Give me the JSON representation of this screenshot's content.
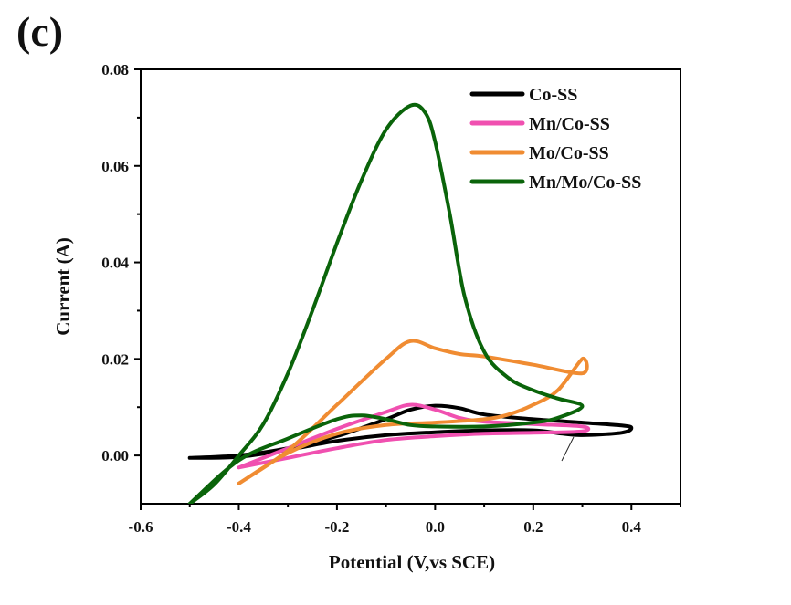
{
  "panel_label": "(c)",
  "chart_data": {
    "type": "line",
    "title": "",
    "xlabel": "Potential (V,vs SCE)",
    "ylabel": "Current (A)",
    "xlim": [
      -0.6,
      0.5
    ],
    "ylim": [
      -0.01,
      0.08
    ],
    "xticks": [
      -0.6,
      -0.4,
      -0.2,
      0.0,
      0.2,
      0.4
    ],
    "xtick_labels": [
      "-0.6",
      "-0.4",
      "-0.2",
      "0.0",
      "0.2",
      "0.4"
    ],
    "xminor": [
      -0.5,
      -0.3,
      -0.1,
      0.1,
      0.3,
      0.5
    ],
    "yticks": [
      0.0,
      0.02,
      0.04,
      0.06,
      0.08
    ],
    "ytick_labels": [
      "0.00",
      "0.02",
      "0.04",
      "0.06",
      "0.08"
    ],
    "yminor": [
      0.01,
      0.03,
      0.05,
      0.07
    ],
    "grid": false,
    "legend_position": "top-right",
    "series": [
      {
        "name": "Co-SS",
        "color": "#000000",
        "points": [
          [
            -0.5,
            -0.0005
          ],
          [
            -0.4,
            0.0
          ],
          [
            -0.3,
            0.0015
          ],
          [
            -0.2,
            0.004
          ],
          [
            -0.1,
            0.0075
          ],
          [
            -0.05,
            0.0095
          ],
          [
            0.0,
            0.0103
          ],
          [
            0.05,
            0.0098
          ],
          [
            0.1,
            0.0085
          ],
          [
            0.2,
            0.0075
          ],
          [
            0.3,
            0.0068
          ],
          [
            0.38,
            0.0062
          ],
          [
            0.4,
            0.0057
          ],
          [
            0.38,
            0.0047
          ],
          [
            0.3,
            0.0042
          ],
          [
            0.26,
            0.0045
          ],
          [
            0.2,
            0.0052
          ],
          [
            0.1,
            0.0052
          ],
          [
            0.0,
            0.0048
          ],
          [
            -0.1,
            0.0042
          ],
          [
            -0.2,
            0.003
          ],
          [
            -0.3,
            0.0012
          ],
          [
            -0.4,
            -0.0003
          ],
          [
            -0.5,
            -0.0005
          ]
        ]
      },
      {
        "name": "Mn/Co-SS",
        "color": "#f050b0",
        "points": [
          [
            -0.4,
            -0.0025
          ],
          [
            -0.3,
            0.0015
          ],
          [
            -0.2,
            0.0055
          ],
          [
            -0.1,
            0.009
          ],
          [
            -0.05,
            0.0105
          ],
          [
            0.0,
            0.0095
          ],
          [
            0.05,
            0.0078
          ],
          [
            0.1,
            0.007
          ],
          [
            0.2,
            0.0065
          ],
          [
            0.3,
            0.006
          ],
          [
            0.3,
            0.005
          ],
          [
            0.2,
            0.0047
          ],
          [
            0.1,
            0.0045
          ],
          [
            0.0,
            0.004
          ],
          [
            -0.1,
            0.0032
          ],
          [
            -0.2,
            0.0015
          ],
          [
            -0.3,
            -0.0005
          ],
          [
            -0.4,
            -0.0025
          ]
        ]
      },
      {
        "name": "Mo/Co-SS",
        "color": "#f08c32",
        "points": [
          [
            -0.4,
            -0.0058
          ],
          [
            -0.3,
            0.001
          ],
          [
            -0.2,
            0.0105
          ],
          [
            -0.1,
            0.02
          ],
          [
            -0.05,
            0.0237
          ],
          [
            0.0,
            0.0222
          ],
          [
            0.05,
            0.021
          ],
          [
            0.1,
            0.0205
          ],
          [
            0.2,
            0.0188
          ],
          [
            0.3,
            0.017
          ],
          [
            0.3,
            0.02
          ],
          [
            0.25,
            0.0135
          ],
          [
            0.2,
            0.0105
          ],
          [
            0.15,
            0.0085
          ],
          [
            0.1,
            0.0075
          ],
          [
            0.0,
            0.0068
          ],
          [
            -0.1,
            0.0063
          ],
          [
            -0.2,
            0.0045
          ],
          [
            -0.3,
            0.0005
          ],
          [
            -0.4,
            -0.0058
          ]
        ]
      },
      {
        "name": "Mn/Mo/Co-SS",
        "color": "#0a640a",
        "points": [
          [
            -0.5,
            -0.01
          ],
          [
            -0.45,
            -0.006
          ],
          [
            -0.4,
            0.0
          ],
          [
            -0.35,
            0.0065
          ],
          [
            -0.3,
            0.017
          ],
          [
            -0.25,
            0.03
          ],
          [
            -0.2,
            0.044
          ],
          [
            -0.15,
            0.057
          ],
          [
            -0.1,
            0.0675
          ],
          [
            -0.05,
            0.0725
          ],
          [
            -0.02,
            0.071
          ],
          [
            0.0,
            0.065
          ],
          [
            0.03,
            0.05
          ],
          [
            0.06,
            0.033
          ],
          [
            0.1,
            0.0215
          ],
          [
            0.15,
            0.016
          ],
          [
            0.2,
            0.0135
          ],
          [
            0.25,
            0.0118
          ],
          [
            0.3,
            0.0102
          ],
          [
            0.25,
            0.0078
          ],
          [
            0.2,
            0.0068
          ],
          [
            0.1,
            0.006
          ],
          [
            0.0,
            0.006
          ],
          [
            -0.05,
            0.0063
          ],
          [
            -0.1,
            0.0075
          ],
          [
            -0.15,
            0.0083
          ],
          [
            -0.2,
            0.0075
          ],
          [
            -0.3,
            0.0035
          ],
          [
            -0.4,
            -0.001
          ],
          [
            -0.5,
            -0.01
          ]
        ]
      }
    ],
    "annotations": [
      "small pointer line near (0.25, 0.0)"
    ]
  }
}
